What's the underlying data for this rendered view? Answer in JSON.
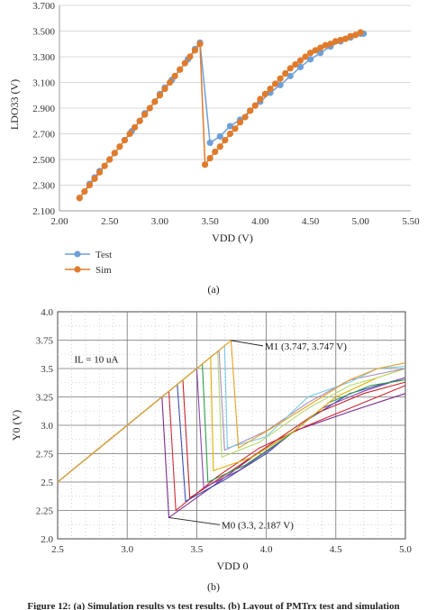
{
  "chart_data": [
    {
      "type": "line",
      "panel_label": "(a)",
      "xlabel": "VDD (V)",
      "ylabel": "LDO33 (V)",
      "xlim": [
        2.0,
        5.5
      ],
      "ylim": [
        2.1,
        3.7
      ],
      "xticks": [
        "2.00",
        "2.50",
        "3.00",
        "3.50",
        "4.00",
        "4.50",
        "5.00",
        "5.50"
      ],
      "yticks": [
        "2.100",
        "2.300",
        "2.500",
        "2.700",
        "2.900",
        "3.100",
        "3.300",
        "3.500",
        "3.700"
      ],
      "grid": "horizontal",
      "legend": "bottom-left",
      "series": [
        {
          "name": "Test",
          "color": "#6f9fd8",
          "points": [
            [
              2.2,
              2.2
            ],
            [
              2.3,
              2.31
            ],
            [
              2.35,
              2.36
            ],
            [
              2.4,
              2.41
            ],
            [
              2.5,
              2.5
            ],
            [
              2.55,
              2.55
            ],
            [
              2.65,
              2.65
            ],
            [
              2.72,
              2.72
            ],
            [
              2.8,
              2.8
            ],
            [
              2.85,
              2.86
            ],
            [
              2.95,
              2.95
            ],
            [
              3.0,
              3.01
            ],
            [
              3.05,
              3.06
            ],
            [
              3.12,
              3.12
            ],
            [
              3.2,
              3.2
            ],
            [
              3.28,
              3.28
            ],
            [
              3.35,
              3.36
            ],
            [
              3.4,
              3.41
            ],
            [
              3.5,
              2.63
            ],
            [
              3.6,
              2.68
            ],
            [
              3.7,
              2.76
            ],
            [
              3.8,
              2.81
            ],
            [
              3.9,
              2.88
            ],
            [
              4.0,
              2.95
            ],
            [
              4.1,
              3.02
            ],
            [
              4.2,
              3.08
            ],
            [
              4.3,
              3.15
            ],
            [
              4.4,
              3.22
            ],
            [
              4.5,
              3.28
            ],
            [
              4.6,
              3.33
            ],
            [
              4.7,
              3.38
            ],
            [
              4.8,
              3.42
            ],
            [
              4.9,
              3.45
            ],
            [
              5.0,
              3.48
            ],
            [
              5.03,
              3.48
            ]
          ]
        },
        {
          "name": "Sim",
          "color": "#e07b2c",
          "points": [
            [
              2.2,
              2.2
            ],
            [
              2.25,
              2.25
            ],
            [
              2.3,
              2.3
            ],
            [
              2.35,
              2.35
            ],
            [
              2.4,
              2.4
            ],
            [
              2.45,
              2.45
            ],
            [
              2.5,
              2.5
            ],
            [
              2.55,
              2.55
            ],
            [
              2.6,
              2.6
            ],
            [
              2.65,
              2.65
            ],
            [
              2.7,
              2.7
            ],
            [
              2.75,
              2.75
            ],
            [
              2.8,
              2.8
            ],
            [
              2.85,
              2.85
            ],
            [
              2.9,
              2.9
            ],
            [
              2.95,
              2.95
            ],
            [
              3.0,
              3.0
            ],
            [
              3.05,
              3.05
            ],
            [
              3.1,
              3.1
            ],
            [
              3.15,
              3.15
            ],
            [
              3.2,
              3.2
            ],
            [
              3.25,
              3.25
            ],
            [
              3.3,
              3.3
            ],
            [
              3.35,
              3.35
            ],
            [
              3.4,
              3.4
            ],
            [
              3.45,
              2.46
            ],
            [
              3.5,
              2.51
            ],
            [
              3.55,
              2.56
            ],
            [
              3.6,
              2.6
            ],
            [
              3.65,
              2.65
            ],
            [
              3.7,
              2.7
            ],
            [
              3.75,
              2.74
            ],
            [
              3.8,
              2.79
            ],
            [
              3.85,
              2.83
            ],
            [
              3.9,
              2.88
            ],
            [
              3.95,
              2.92
            ],
            [
              4.0,
              2.97
            ],
            [
              4.05,
              3.01
            ],
            [
              4.1,
              3.05
            ],
            [
              4.15,
              3.09
            ],
            [
              4.2,
              3.13
            ],
            [
              4.25,
              3.17
            ],
            [
              4.3,
              3.21
            ],
            [
              4.35,
              3.24
            ],
            [
              4.4,
              3.27
            ],
            [
              4.45,
              3.3
            ],
            [
              4.5,
              3.33
            ],
            [
              4.55,
              3.35
            ],
            [
              4.6,
              3.37
            ],
            [
              4.65,
              3.39
            ],
            [
              4.7,
              3.4
            ],
            [
              4.75,
              3.42
            ],
            [
              4.8,
              3.43
            ],
            [
              4.85,
              3.44
            ],
            [
              4.9,
              3.46
            ],
            [
              4.95,
              3.47
            ],
            [
              5.0,
              3.49
            ]
          ]
        }
      ]
    },
    {
      "type": "line",
      "panel_label": "(b)",
      "xlabel": "VDD 0",
      "ylabel": "Y0 (V)",
      "xlim": [
        2.5,
        5.0
      ],
      "ylim": [
        2.0,
        4.0
      ],
      "xticks": [
        "2.5",
        "3.0",
        "3.5",
        "4.0",
        "4.5",
        "5.0"
      ],
      "yticks": [
        "2.0",
        "2.25",
        "2.5",
        "2.75",
        "3.0",
        "3.25",
        "3.5",
        "3.75",
        "4.0"
      ],
      "grid": "dotted",
      "annotations": [
        {
          "text": "IL = 10 uA",
          "x": 2.62,
          "y": 3.55
        },
        {
          "text": "M1 (3.747, 3.747 V)",
          "marker_x": 3.747,
          "marker_y": 3.747
        },
        {
          "text": "M0 (3.3, 2.187 V)",
          "marker_x": 3.3,
          "marker_y": 2.187
        }
      ],
      "series": [
        {
          "color": "#7a2b8c",
          "points": [
            [
              2.5,
              2.5
            ],
            [
              3.25,
              3.25
            ],
            [
              3.3,
              2.187
            ],
            [
              3.6,
              2.45
            ],
            [
              3.9,
              2.72
            ],
            [
              4.2,
              2.95
            ],
            [
              4.6,
              3.12
            ],
            [
              5.0,
              3.28
            ]
          ]
        },
        {
          "color": "#cc2a36",
          "points": [
            [
              2.5,
              2.5
            ],
            [
              3.3,
              3.3
            ],
            [
              3.35,
              2.25
            ],
            [
              3.65,
              2.55
            ],
            [
              3.95,
              2.8
            ],
            [
              4.3,
              3.0
            ],
            [
              4.6,
              3.15
            ],
            [
              5.0,
              3.35
            ]
          ]
        },
        {
          "color": "#3a4fb0",
          "points": [
            [
              2.5,
              2.5
            ],
            [
              3.36,
              3.36
            ],
            [
              3.42,
              2.33
            ],
            [
              3.7,
              2.52
            ],
            [
              4.0,
              2.75
            ],
            [
              4.3,
              3.05
            ],
            [
              4.6,
              3.28
            ],
            [
              5.0,
              3.42
            ]
          ]
        },
        {
          "color": "#c1272d",
          "points": [
            [
              2.5,
              2.5
            ],
            [
              3.4,
              3.4
            ],
            [
              3.45,
              2.36
            ],
            [
              3.75,
              2.6
            ],
            [
              4.05,
              2.85
            ],
            [
              4.35,
              3.1
            ],
            [
              4.7,
              3.28
            ],
            [
              5.0,
              3.38
            ]
          ]
        },
        {
          "color": "#8e44ad",
          "points": [
            [
              2.5,
              2.5
            ],
            [
              3.5,
              3.5
            ],
            [
              3.55,
              2.45
            ],
            [
              3.8,
              2.6
            ],
            [
              4.1,
              2.85
            ],
            [
              4.4,
              3.15
            ],
            [
              4.7,
              3.3
            ],
            [
              5.0,
              3.42
            ]
          ]
        },
        {
          "color": "#2c9c4a",
          "points": [
            [
              2.5,
              2.5
            ],
            [
              3.54,
              3.54
            ],
            [
              3.58,
              2.5
            ],
            [
              3.85,
              2.65
            ],
            [
              4.15,
              2.9
            ],
            [
              4.45,
              3.2
            ],
            [
              4.75,
              3.35
            ],
            [
              5.0,
              3.4
            ]
          ]
        },
        {
          "color": "#e0b000",
          "points": [
            [
              2.5,
              2.5
            ],
            [
              3.6,
              3.6
            ],
            [
              3.62,
              2.6
            ],
            [
              3.9,
              2.72
            ],
            [
              4.2,
              2.95
            ],
            [
              4.5,
              3.25
            ],
            [
              4.8,
              3.42
            ],
            [
              5.0,
              3.5
            ]
          ]
        },
        {
          "color": "#b7d96a",
          "points": [
            [
              2.5,
              2.5
            ],
            [
              3.65,
              3.65
            ],
            [
              3.68,
              2.72
            ],
            [
              3.95,
              2.85
            ],
            [
              4.3,
              3.15
            ],
            [
              4.6,
              3.35
            ],
            [
              4.8,
              3.42
            ],
            [
              5.0,
              3.5
            ]
          ]
        },
        {
          "color": "#a58bc0",
          "points": [
            [
              2.5,
              2.5
            ],
            [
              3.66,
              3.66
            ],
            [
              3.7,
              2.78
            ],
            [
              4.0,
              2.95
            ],
            [
              4.3,
              3.2
            ],
            [
              4.6,
              3.4
            ],
            [
              5.0,
              3.5
            ]
          ]
        },
        {
          "color": "#78c8e6",
          "points": [
            [
              2.5,
              2.5
            ],
            [
              3.7,
              3.7
            ],
            [
              3.72,
              2.8
            ],
            [
              4.0,
              2.9
            ],
            [
              4.3,
              3.25
            ],
            [
              4.6,
              3.38
            ],
            [
              4.8,
              3.5
            ],
            [
              5.0,
              3.52
            ]
          ]
        },
        {
          "color": "#e8a020",
          "points": [
            [
              2.5,
              2.5
            ],
            [
              3.747,
              3.747
            ],
            [
              3.8,
              2.8
            ],
            [
              4.1,
              3.02
            ],
            [
              4.4,
              3.25
            ],
            [
              4.6,
              3.4
            ],
            [
              4.8,
              3.5
            ],
            [
              5.0,
              3.55
            ]
          ]
        }
      ]
    }
  ],
  "caption_fragment": "Figure 12: (a) Simulation results vs test results. (b) Layout of PMTrx test and simulation"
}
